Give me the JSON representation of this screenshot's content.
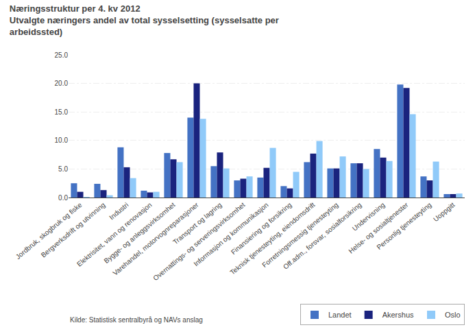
{
  "chart_data": {
    "type": "bar",
    "title": "Næringsstruktur per 4. kv 2012",
    "subtitle": "Utvalgte næringers andel av total sysselsetting (sysselsatte per\narbeidssted)",
    "annotations": [
      "Kilde: Statistisk sentralbyrå og NAVs anslag"
    ],
    "categories": [
      "Jordbruk, skogbruk og fiske",
      "Bergverksdrift og utvinning",
      "Industri",
      "Elektrisitet, vann og renovasjon",
      "Bygge- og anleggsvirksomhet",
      "Varehandel, motorvognreparasjoner",
      "Transport og lagring",
      "Overnattings- og serveringsvirksomhet",
      "Informasjon og kommunikasjon",
      "Finansiering og forsikring",
      "Teknisk tjenesteyting, eiendomsdrift",
      "Forretningsmessig tjenesteyting",
      "Off.adm., forsvar, sosialforsikring",
      "Undervisning",
      "Helse- og sosialtjenester",
      "Personlig tjenesteyting",
      "Uoppgitt"
    ],
    "series": [
      {
        "name": "Landet",
        "color": "#4472c4",
        "values": [
          2.5,
          2.4,
          8.8,
          1.2,
          7.8,
          14.0,
          5.5,
          3.0,
          3.5,
          2.0,
          6.2,
          5.1,
          6.0,
          8.5,
          19.8,
          3.7,
          0.6
        ]
      },
      {
        "name": "Akershus",
        "color": "#1a237e",
        "values": [
          1.0,
          1.3,
          5.3,
          0.9,
          6.7,
          20.0,
          7.9,
          3.3,
          5.2,
          1.6,
          7.7,
          5.1,
          6.0,
          7.0,
          19.2,
          3.0,
          0.6
        ]
      },
      {
        "name": "Oslo",
        "color": "#90caf9",
        "values": [
          0.1,
          0.4,
          3.4,
          1.0,
          6.2,
          13.8,
          5.1,
          3.7,
          8.7,
          4.5,
          9.9,
          7.2,
          5.0,
          6.4,
          14.6,
          6.3,
          0.7
        ]
      }
    ],
    "ylim": [
      0,
      25
    ],
    "yticks": [
      {
        "value": 0,
        "label": "0.0"
      },
      {
        "value": 5,
        "label": "5.0"
      },
      {
        "value": 10,
        "label": "10.0"
      },
      {
        "value": 15,
        "label": "15.0"
      },
      {
        "value": 20,
        "label": "20.0"
      },
      {
        "value": 25,
        "label": "25.0"
      }
    ],
    "grid": true,
    "legend": "lower right"
  }
}
